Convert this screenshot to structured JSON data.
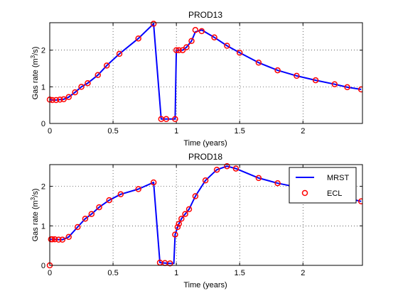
{
  "colors": {
    "mrst": "#0000ff",
    "ecl": "#ff0000",
    "axes": "#000000",
    "grid": "#000000"
  },
  "legend": {
    "position": "top-right of second plot",
    "entries": [
      "MRST",
      "ECL"
    ]
  },
  "chart_data": [
    {
      "type": "line",
      "title": "PROD13",
      "xlabel": "Time (years)",
      "ylabel": "Gas rate (m³/s)",
      "xlim": [
        0,
        2.47
      ],
      "ylim": [
        0,
        2.75
      ],
      "xticks": [
        "0",
        "0.5",
        "1",
        "1.5",
        "2"
      ],
      "yticks": [
        "0",
        "1",
        "2"
      ],
      "grid": true,
      "series": [
        {
          "name": "MRST",
          "style": "line",
          "x": [
            0,
            0.02,
            0.05,
            0.08,
            0.11,
            0.15,
            0.2,
            0.25,
            0.3,
            0.38,
            0.45,
            0.55,
            0.7,
            0.82,
            0.88,
            0.92,
            0.99,
            1.0,
            1.02,
            1.05,
            1.08,
            1.12,
            1.15,
            1.2,
            1.3,
            1.4,
            1.5,
            1.65,
            1.8,
            1.95,
            2.1,
            2.25,
            2.35,
            2.46
          ],
          "y": [
            0.65,
            0.64,
            0.64,
            0.65,
            0.66,
            0.72,
            0.85,
            1.0,
            1.1,
            1.32,
            1.58,
            1.9,
            2.32,
            2.72,
            0.12,
            0.12,
            0.12,
            2.0,
            2.0,
            2.0,
            2.08,
            2.25,
            2.5,
            2.55,
            2.35,
            2.12,
            1.93,
            1.66,
            1.45,
            1.3,
            1.18,
            1.07,
            0.99,
            0.93
          ]
        },
        {
          "name": "ECL",
          "style": "circle",
          "x": [
            0,
            0.02,
            0.05,
            0.08,
            0.11,
            0.15,
            0.2,
            0.25,
            0.3,
            0.38,
            0.45,
            0.55,
            0.7,
            0.82,
            0.88,
            0.92,
            0.99,
            1.0,
            1.02,
            1.05,
            1.08,
            1.12,
            1.15,
            1.2,
            1.3,
            1.4,
            1.5,
            1.65,
            1.8,
            1.95,
            2.1,
            2.25,
            2.35,
            2.46
          ],
          "y": [
            0.65,
            0.64,
            0.64,
            0.65,
            0.66,
            0.72,
            0.85,
            1.0,
            1.1,
            1.32,
            1.58,
            1.9,
            2.32,
            2.72,
            0.12,
            0.12,
            0.12,
            2.0,
            2.0,
            2.0,
            2.08,
            2.25,
            2.55,
            2.52,
            2.35,
            2.12,
            1.93,
            1.66,
            1.45,
            1.3,
            1.18,
            1.07,
            0.99,
            0.93
          ]
        }
      ]
    },
    {
      "type": "line",
      "title": "PROD18",
      "xlabel": "Time (years)",
      "ylabel": "Gas rate (m³/s)",
      "xlim": [
        0,
        2.47
      ],
      "ylim": [
        0,
        2.55
      ],
      "xticks": [
        "0",
        "0.5",
        "1",
        "1.5",
        "2"
      ],
      "yticks": [
        "0",
        "1",
        "2"
      ],
      "grid": true,
      "series": [
        {
          "name": "MRST",
          "style": "line",
          "x": [
            0,
            0.01,
            0.02,
            0.04,
            0.07,
            0.1,
            0.15,
            0.22,
            0.28,
            0.33,
            0.39,
            0.47,
            0.56,
            0.7,
            0.82,
            0.87,
            0.91,
            0.95,
            0.98,
            0.99,
            1.01,
            1.02,
            1.04,
            1.07,
            1.1,
            1.15,
            1.23,
            1.32,
            1.4,
            1.47,
            1.65,
            1.8,
            1.95,
            2.1,
            2.25,
            2.35,
            2.46
          ],
          "y": [
            0.65,
            0.66,
            0.66,
            0.66,
            0.65,
            0.65,
            0.72,
            0.97,
            1.18,
            1.3,
            1.47,
            1.65,
            1.8,
            1.93,
            2.1,
            0.07,
            0.06,
            0.05,
            0.05,
            0.78,
            0.97,
            1.05,
            1.18,
            1.3,
            1.42,
            1.75,
            2.15,
            2.42,
            2.51,
            2.45,
            2.21,
            2.08,
            1.98,
            1.88,
            1.78,
            1.7,
            1.62
          ]
        },
        {
          "name": "ECL",
          "style": "circle",
          "x": [
            0,
            0.01,
            0.02,
            0.04,
            0.07,
            0.1,
            0.15,
            0.22,
            0.28,
            0.33,
            0.39,
            0.47,
            0.56,
            0.7,
            0.82,
            0.87,
            0.91,
            0.95,
            0.99,
            1.01,
            1.02,
            1.04,
            1.07,
            1.1,
            1.15,
            1.23,
            1.32,
            1.4,
            1.47,
            1.65,
            1.8,
            1.95,
            2.46
          ],
          "y": [
            0.0,
            0.66,
            0.66,
            0.66,
            0.65,
            0.65,
            0.72,
            0.97,
            1.18,
            1.3,
            1.47,
            1.65,
            1.8,
            1.93,
            2.1,
            0.07,
            0.06,
            0.05,
            0.78,
            0.97,
            1.05,
            1.18,
            1.3,
            1.42,
            1.75,
            2.15,
            2.42,
            2.51,
            2.45,
            2.21,
            2.08,
            1.98,
            1.62
          ]
        }
      ]
    }
  ]
}
